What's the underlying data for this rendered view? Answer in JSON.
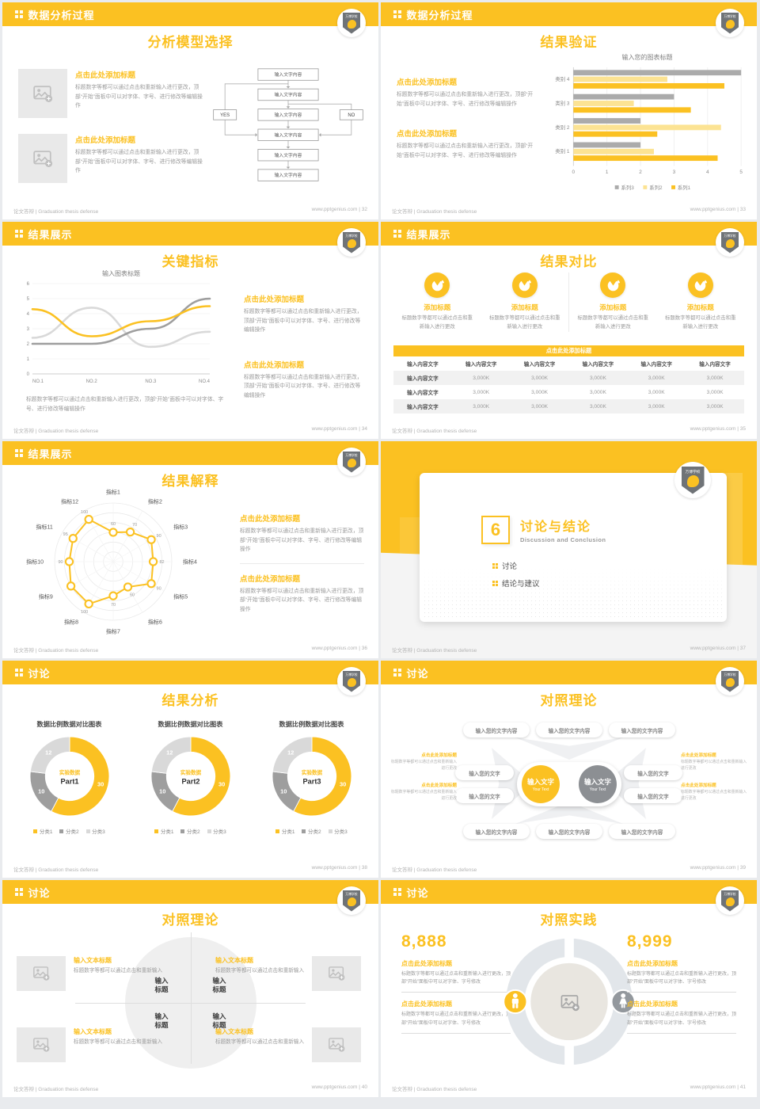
{
  "meta": {
    "footer_left": "论文答辩 | Graduation thesis defense",
    "site": "www.pptgenius.com",
    "logo_text": "万博学校"
  },
  "colors": {
    "primary": "#FBC122",
    "light_yellow": "#FCE393",
    "gray": "#ABABAB",
    "light_gray": "#D9D9D9",
    "dark_gray": "#9E9E9E"
  },
  "slides": [
    {
      "header": "数据分析过程",
      "title": "分析模型选择",
      "page": "32",
      "footer_right": "www.pptgenius.com | 32",
      "blocks": [
        {
          "title": "点击此处添加标题",
          "body": "标题数字等都可以通过点击和重新输入进行更改，顶部“开始”面板中可以对字体、字号、进行修改等编辑操作"
        },
        {
          "title": "点击此处添加标题",
          "body": "标题数字等都可以通过点击和重新输入进行更改，顶部“开始”面板中可以对字体、字号、进行修改等编辑操作"
        }
      ],
      "flow": {
        "steps": [
          "输入文字内容",
          "输入文字内容",
          "输入文字内容",
          "输入文字内容",
          "输入文字内容",
          "输入文字内容"
        ],
        "yes_label": "YES",
        "no_label": "NO"
      }
    },
    {
      "header": "数据分析过程",
      "title": "结果验证",
      "page": "33",
      "footer_right": "www.pptgenius.com | 33",
      "blocks": [
        {
          "title": "点击此处添加标题",
          "body": "标题数字等都可以通过点击和重新输入进行更改，顶部“开始”面板中可以对字体、字号、进行修改等编辑操作"
        },
        {
          "title": "点击此处添加标题",
          "body": "标题数字等都可以通过点击和重新输入进行更改，顶部“开始”面板中可以对字体、字号、进行修改等编辑操作"
        }
      ]
    },
    {
      "header": "结果展示",
      "title": "关键指标",
      "page": "34",
      "footer_right": "www.pptgenius.com | 34",
      "caption": "标题数字等都可以通过点击和重新输入进行更改，顶部“开始”面板中可以对字体、字号、进行修改等编辑操作",
      "blocks": [
        {
          "title": "点击此处添加标题",
          "body": "标题数字等都可以通过点击和重新输入进行更改，顶部“开始”面板中可以对字体、字号、进行修改等编辑操作"
        },
        {
          "title": "点击此处添加标题",
          "body": "标题数字等都可以通过点击和重新输入进行更改，顶部“开始”面板中可以对字体、字号、进行修改等编辑操作"
        }
      ]
    },
    {
      "header": "结果展示",
      "title": "结果对比",
      "page": "35",
      "footer_right": "www.pptgenius.com | 35",
      "features": [
        {
          "title": "添加标题",
          "body": "标题数字等都可以通过点击和重新输入进行更改"
        },
        {
          "title": "添加标题",
          "body": "标题数字等都可以通过点击和重新输入进行更改"
        },
        {
          "title": "添加标题",
          "body": "标题数字等都可以通过点击和重新输入进行更改"
        },
        {
          "title": "添加标题",
          "body": "标题数字等都可以通过点击和重新输入进行更改"
        }
      ],
      "table": {
        "band": "点击此处添加标题",
        "columns": [
          "输入内容文字",
          "输入内容文字",
          "输入内容文字",
          "输入内容文字",
          "输入内容文字",
          "输入内容文字"
        ],
        "rows": [
          [
            "输入内容文字",
            "3,000K",
            "3,000K",
            "3,000K",
            "3,000K",
            "3,000K"
          ],
          [
            "输入内容文字",
            "3,000K",
            "3,000K",
            "3,000K",
            "3,000K",
            "3,000K"
          ],
          [
            "输入内容文字",
            "3,000K",
            "3,000K",
            "3,000K",
            "3,000K",
            "3,000K"
          ]
        ]
      }
    },
    {
      "header": "结果展示",
      "title": "结果解释",
      "page": "36",
      "footer_right": "www.pptgenius.com | 36",
      "blocks": [
        {
          "title": "点击此处添加标题",
          "body": "标题数字等都可以通过点击和重新输入进行更改，顶部“开始”面板中可以对字体、字号、进行修改等编辑操作"
        },
        {
          "title": "点击此处添加标题",
          "body": "标题数字等都可以通过点击和重新输入进行更改，顶部“开始”面板中可以对字体、字号、进行修改等编辑操作"
        }
      ]
    },
    {
      "title": "讨论与结论",
      "subtitle": "Discussion and Conclusion",
      "number": "6",
      "bullets": [
        "讨论",
        "结论与建议"
      ],
      "page": "37",
      "footer_right": "www.pptgenius.com | 37"
    },
    {
      "header": "讨论",
      "title": "结果分析",
      "page": "38",
      "footer_right": "www.pptgenius.com | 38"
    },
    {
      "header": "讨论",
      "title": "对照理论",
      "page": "39",
      "footer_right": "www.pptgenius.com | 39",
      "top_pills": [
        "输入您的文字内容",
        "输入您的文字内容",
        "输入您的文字内容"
      ],
      "bottom_pills": [
        "输入您的文字内容",
        "输入您的文字内容",
        "输入您的文字内容"
      ],
      "left_pills": [
        "输入您的文字",
        "输入您的文字"
      ],
      "right_pills": [
        "输入您的文字",
        "输入您的文字"
      ],
      "center": [
        {
          "text": "输入文字",
          "sub": "Your Text"
        },
        {
          "text": "输入文字",
          "sub": "Your Text"
        }
      ],
      "left_notes": [
        {
          "title": "点击此处添加标题",
          "body": "标题数字等都可以通过点击和重新输入进行更改"
        },
        {
          "title": "点击此处添加标题",
          "body": "标题数字等都可以通过点击和重新输入进行更改"
        }
      ],
      "right_notes": [
        {
          "title": "点击此处添加标题",
          "body": "标题数字等都可以通过点击和重新输入进行更改"
        },
        {
          "title": "点击此处添加标题",
          "body": "标题数字等都可以通过点击和重新输入进行更改"
        }
      ]
    },
    {
      "header": "讨论",
      "title": "对照理论",
      "page": "40",
      "footer_right": "www.pptgenius.com | 40",
      "quadrant_labels": [
        "输入\n标题",
        "输入\n标题",
        "输入\n标题",
        "输入\n标题"
      ],
      "corners": [
        {
          "title": "输入文本标题",
          "body": "标题数字等都可以通过点击和重新输入"
        },
        {
          "title": "输入文本标题",
          "body": "标题数字等都可以通过点击和重新输入"
        },
        {
          "title": "输入文本标题",
          "body": "标题数字等都可以通过点击和重新输入"
        },
        {
          "title": "输入文本标题",
          "body": "标题数字等都可以通过点击和重新输入"
        }
      ]
    },
    {
      "header": "讨论",
      "title": "对照实践",
      "page": "41",
      "footer_right": "www.pptgenius.com | 41",
      "left_number": "8,888",
      "right_number": "8,999",
      "left_blocks": [
        {
          "title": "点击此处添加标题",
          "body": "标题数字等都可以通过点击和重新输入进行更改，顶部“开始”面板中可以对字体、字号修改"
        },
        {
          "title": "点击此处添加标题",
          "body": "标题数字等都可以通过点击和重新输入进行更改，顶部“开始”面板中可以对字体、字号修改"
        }
      ],
      "right_blocks": [
        {
          "title": "点击此处添加标题",
          "body": "标题数字等都可以通过点击和重新输入进行更改，顶部“开始”面板中可以对字体、字号修改"
        },
        {
          "title": "点击此处添加标题",
          "body": "标题数字等都可以通过点击和重新输入进行更改，顶部“开始”面板中可以对字体、字号修改"
        }
      ]
    }
  ],
  "chart_data": [
    {
      "id": "bar-validation",
      "type": "bar",
      "orientation": "horizontal",
      "title": "输入您的图表标题",
      "categories": [
        "类别 1",
        "类别 2",
        "类别 3",
        "类别 4"
      ],
      "series": [
        {
          "name": "系列1",
          "color": "#FBC122",
          "values": [
            4.3,
            2.5,
            3.5,
            4.5
          ]
        },
        {
          "name": "系列2",
          "color": "#FCE393",
          "values": [
            2.4,
            4.4,
            1.8,
            2.8
          ]
        },
        {
          "name": "系列3",
          "color": "#ABABAB",
          "values": [
            2.0,
            2.0,
            3.0,
            5.0
          ]
        }
      ],
      "xlim": [
        0,
        5
      ],
      "xticks": [
        0,
        1,
        2,
        3,
        4,
        5
      ],
      "legend_position": "bottom"
    },
    {
      "id": "line-indicators",
      "type": "line",
      "title": "输入图表标题",
      "x": [
        "NO.1",
        "NO.2",
        "NO.3",
        "NO.4"
      ],
      "series": [
        {
          "name": "系列1",
          "color": "#FBC122",
          "values": [
            4.3,
            2.5,
            3.5,
            4.5
          ]
        },
        {
          "name": "系列2",
          "color": "#D9D9D9",
          "values": [
            2.4,
            4.4,
            1.8,
            2.8
          ]
        },
        {
          "name": "系列3",
          "color": "#9E9E9E",
          "values": [
            2.0,
            2.0,
            3.0,
            5.0
          ]
        }
      ],
      "ylim": [
        0,
        6
      ],
      "yticks": [
        0,
        1,
        2,
        3,
        4,
        5,
        6
      ],
      "grid": true
    },
    {
      "id": "radar-interpretation",
      "type": "radar",
      "axes": [
        "指标1",
        "指标2",
        "指标3",
        "指标4",
        "指标5",
        "指标6",
        "指标7",
        "指标8",
        "指标9",
        "指标10",
        "指标11",
        "指标12"
      ],
      "values": [
        60,
        70,
        90,
        82,
        90,
        60,
        70,
        100,
        100,
        90,
        95,
        100
      ],
      "max": 120,
      "rings": 6,
      "color": "#FBC122"
    },
    {
      "id": "donut-parts",
      "type": "pie",
      "chart_title": "数据比例数据对比图表",
      "labels": [
        "分类1",
        "分类2",
        "分类3"
      ],
      "values": [
        30,
        10,
        12
      ],
      "colors": [
        "#FBC122",
        "#9E9E9E",
        "#D9D9D9"
      ],
      "center_label": "实验数据",
      "titles": [
        "Part1",
        "Part2",
        "Part3"
      ]
    }
  ]
}
